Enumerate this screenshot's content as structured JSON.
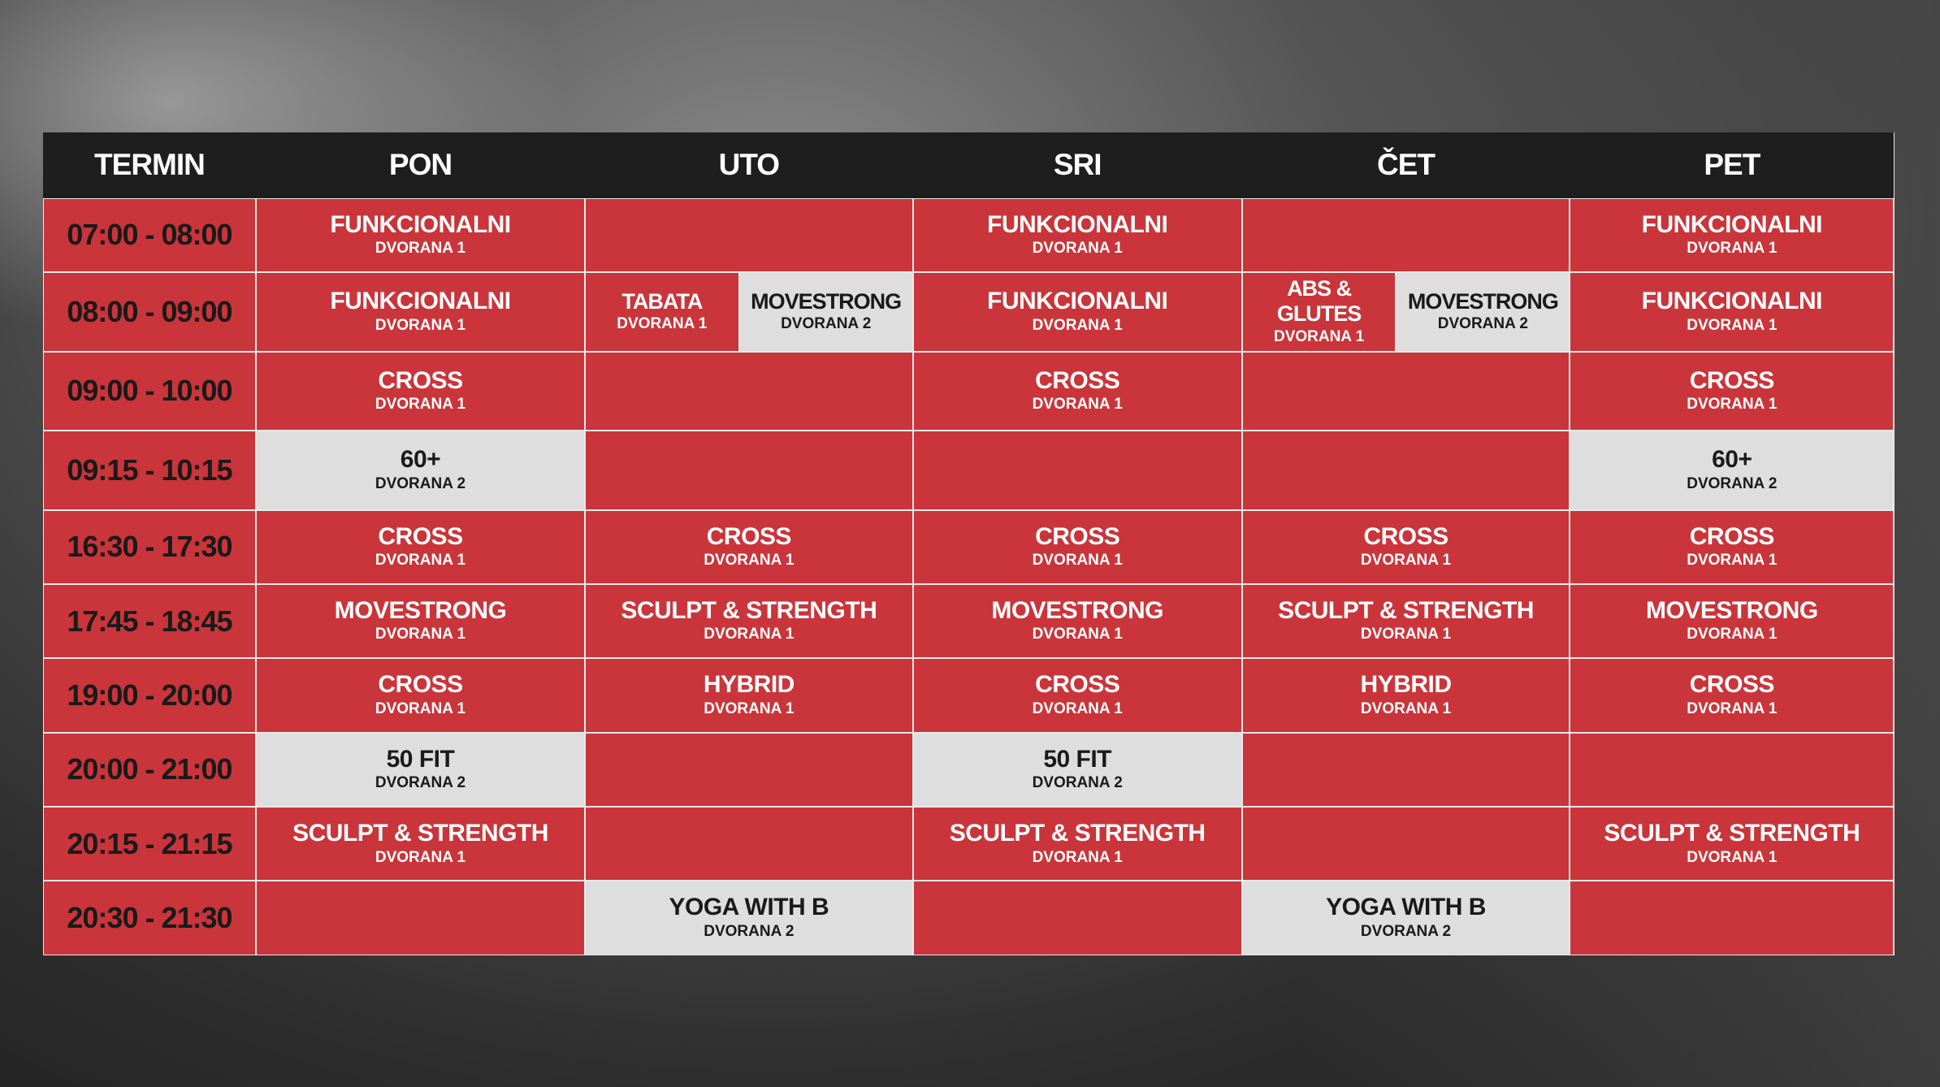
{
  "header": {
    "columns": [
      "TERMIN",
      "PON",
      "UTO",
      "SRI",
      "ČET",
      "PET"
    ]
  },
  "rows": [
    {
      "time": "07:00 - 08:00",
      "cells": [
        [
          {
            "name": "FUNKCIONALNI",
            "room": "DVORANA 1"
          }
        ],
        [],
        [
          {
            "name": "FUNKCIONALNI",
            "room": "DVORANA 1"
          }
        ],
        [],
        [
          {
            "name": "FUNKCIONALNI",
            "room": "DVORANA 1"
          }
        ]
      ]
    },
    {
      "time": "08:00 - 09:00",
      "cells": [
        [
          {
            "name": "FUNKCIONALNI",
            "room": "DVORANA 1"
          }
        ],
        [
          {
            "name": "TABATA",
            "room": "DVORANA 1"
          },
          {
            "name": "MOVESTRONG",
            "room": "DVORANA 2",
            "light": true
          }
        ],
        [
          {
            "name": "FUNKCIONALNI",
            "room": "DVORANA 1"
          }
        ],
        [
          {
            "name": "ABS & GLUTES",
            "room": "DVORANA 1"
          },
          {
            "name": "MOVESTRONG",
            "room": "DVORANA 2",
            "light": true
          }
        ],
        [
          {
            "name": "FUNKCIONALNI",
            "room": "DVORANA 1"
          }
        ]
      ]
    },
    {
      "time": "09:00 - 10:00",
      "cells": [
        [
          {
            "name": "CROSS",
            "room": "DVORANA 1"
          }
        ],
        [],
        [
          {
            "name": "CROSS",
            "room": "DVORANA 1"
          }
        ],
        [],
        [
          {
            "name": "CROSS",
            "room": "DVORANA 1"
          }
        ]
      ]
    },
    {
      "time": "09:15 - 10:15",
      "cells": [
        [
          {
            "name": "60+",
            "room": "DVORANA 2",
            "light": true
          }
        ],
        [],
        [],
        [],
        [
          {
            "name": "60+",
            "room": "DVORANA 2",
            "light": true
          }
        ]
      ]
    },
    {
      "time": "16:30 - 17:30",
      "cells": [
        [
          {
            "name": "CROSS",
            "room": "DVORANA 1"
          }
        ],
        [
          {
            "name": "CROSS",
            "room": "DVORANA 1"
          }
        ],
        [
          {
            "name": "CROSS",
            "room": "DVORANA 1"
          }
        ],
        [
          {
            "name": "CROSS",
            "room": "DVORANA 1"
          }
        ],
        [
          {
            "name": "CROSS",
            "room": "DVORANA 1"
          }
        ]
      ]
    },
    {
      "time": "17:45 - 18:45",
      "cells": [
        [
          {
            "name": "MOVESTRONG",
            "room": "DVORANA 1"
          }
        ],
        [
          {
            "name": "SCULPT & STRENGTH",
            "room": "DVORANA 1"
          }
        ],
        [
          {
            "name": "MOVESTRONG",
            "room": "DVORANA 1"
          }
        ],
        [
          {
            "name": "SCULPT & STRENGTH",
            "room": "DVORANA 1"
          }
        ],
        [
          {
            "name": "MOVESTRONG",
            "room": "DVORANA 1"
          }
        ]
      ]
    },
    {
      "time": "19:00 - 20:00",
      "cells": [
        [
          {
            "name": "CROSS",
            "room": "DVORANA 1"
          }
        ],
        [
          {
            "name": "HYBRID",
            "room": "DVORANA 1"
          }
        ],
        [
          {
            "name": "CROSS",
            "room": "DVORANA 1"
          }
        ],
        [
          {
            "name": "HYBRID",
            "room": "DVORANA 1"
          }
        ],
        [
          {
            "name": "CROSS",
            "room": "DVORANA 1"
          }
        ]
      ]
    },
    {
      "time": "20:00 - 21:00",
      "cells": [
        [
          {
            "name": "50 FIT",
            "room": "DVORANA 2",
            "light": true
          }
        ],
        [],
        [
          {
            "name": "50 FIT",
            "room": "DVORANA 2",
            "light": true
          }
        ],
        [],
        []
      ]
    },
    {
      "time": "20:15 - 21:15",
      "cells": [
        [
          {
            "name": "SCULPT & STRENGTH",
            "room": "DVORANA 1"
          }
        ],
        [],
        [
          {
            "name": "SCULPT & STRENGTH",
            "room": "DVORANA 1"
          }
        ],
        [],
        [
          {
            "name": "SCULPT & STRENGTH",
            "room": "DVORANA 1"
          }
        ]
      ]
    },
    {
      "time": "20:30 - 21:30",
      "cells": [
        [],
        [
          {
            "name": "YOGA WITH B",
            "room": "DVORANA 2",
            "light": true
          }
        ],
        [],
        [
          {
            "name": "YOGA WITH B",
            "room": "DVORANA 2",
            "light": true
          }
        ],
        []
      ]
    }
  ]
}
